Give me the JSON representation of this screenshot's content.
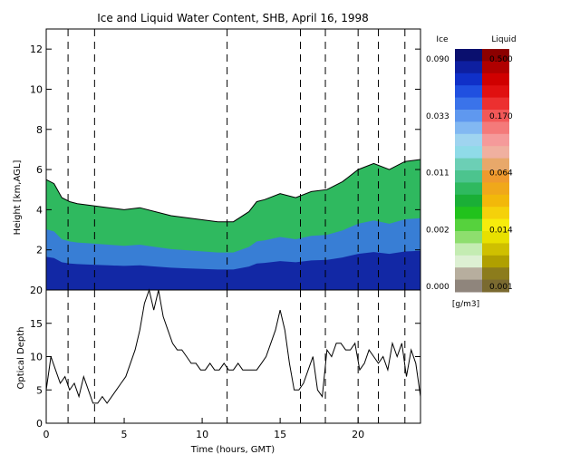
{
  "chart_data": [
    {
      "type": "heatmap",
      "title": "Ice and Liquid Water Content, SHB, April 16, 1998",
      "ylabel": "Height [km,AGL]",
      "xlim": [
        0,
        24
      ],
      "ylim": [
        0,
        13
      ],
      "x_ticks": [
        0,
        5,
        10,
        15,
        20
      ],
      "y_ticks": [
        2,
        4,
        6,
        8,
        10,
        12
      ],
      "dashed_times": [
        1.4,
        3.1,
        11.6,
        16.3,
        17.9,
        20.0,
        21.3,
        23.0
      ],
      "cloud_top_km": [
        [
          0,
          5.5
        ],
        [
          0.5,
          5.3
        ],
        [
          1,
          4.6
        ],
        [
          1.5,
          4.4
        ],
        [
          2,
          4.3
        ],
        [
          3,
          4.2
        ],
        [
          4,
          4.1
        ],
        [
          5,
          4.0
        ],
        [
          6,
          4.1
        ],
        [
          7,
          3.9
        ],
        [
          8,
          3.7
        ],
        [
          9,
          3.6
        ],
        [
          10,
          3.5
        ],
        [
          11,
          3.4
        ],
        [
          12,
          3.4
        ],
        [
          13,
          3.9
        ],
        [
          13.5,
          4.4
        ],
        [
          14,
          4.5
        ],
        [
          15,
          4.8
        ],
        [
          16,
          4.6
        ],
        [
          17,
          4.9
        ],
        [
          18,
          5.0
        ],
        [
          19,
          5.4
        ],
        [
          20,
          6.0
        ],
        [
          21,
          6.3
        ],
        [
          22,
          6.0
        ],
        [
          23,
          6.4
        ],
        [
          24,
          6.5
        ]
      ],
      "ice_colorbar": {
        "label": "Ice",
        "ticks": [
          "0.090",
          "0.033",
          "0.011",
          "0.002",
          "0.000"
        ],
        "colors": [
          "#0a0f6e",
          "#0e1fa0",
          "#1030c8",
          "#2050e0",
          "#3a73ea",
          "#5f98ef",
          "#82b8f2",
          "#9fd4f0",
          "#8fdbe8",
          "#6ccfb5",
          "#4cc48e",
          "#2fb95f",
          "#1aaf36",
          "#21c21c",
          "#56d23d",
          "#8ede6e",
          "#c4ecb2",
          "#ddf0d3",
          "#b7ae9e",
          "#8f857c"
        ]
      },
      "liquid_colorbar": {
        "label": "Liquid",
        "ticks": [
          "0.500",
          "0.170",
          "0.064",
          "0.014",
          "0.001"
        ],
        "unit": "[g/m3]",
        "colors": [
          "#8c0000",
          "#b00000",
          "#d00000",
          "#e01010",
          "#ec3030",
          "#f25858",
          "#f47a7a",
          "#f59a9a",
          "#f0b0a0",
          "#e8a86a",
          "#ef9a2e",
          "#f0a81a",
          "#f2b80a",
          "#f5d10a",
          "#f7ec0c",
          "#e8e000",
          "#cfc000",
          "#b0a000",
          "#8c7c1c",
          "#7a6a30"
        ]
      }
    },
    {
      "type": "line",
      "xlabel": "Time (hours, GMT)",
      "ylabel": "Optical Depth",
      "xlim": [
        0,
        24
      ],
      "ylim": [
        0,
        20
      ],
      "x_ticks": [
        0,
        5,
        10,
        15,
        20
      ],
      "y_ticks": [
        0,
        5,
        10,
        15,
        20
      ],
      "series": [
        {
          "x": [
            0,
            0.3,
            0.6,
            0.9,
            1.2,
            1.5,
            1.8,
            2.1,
            2.4,
            2.7,
            3.0,
            3.3,
            3.6,
            3.9,
            4.2,
            4.5,
            4.8,
            5.1,
            5.4,
            5.7,
            6.0,
            6.3,
            6.6,
            6.9,
            7.2,
            7.5,
            7.8,
            8.1,
            8.4,
            8.7,
            9.0,
            9.3,
            9.6,
            9.9,
            10.2,
            10.5,
            10.8,
            11.1,
            11.4,
            11.7,
            12.0,
            12.3,
            12.6,
            12.9,
            13.2,
            13.5,
            13.8,
            14.1,
            14.4,
            14.7,
            15.0,
            15.3,
            15.6,
            15.9,
            16.2,
            16.5,
            16.8,
            17.1,
            17.4,
            17.7,
            18.0,
            18.3,
            18.6,
            18.9,
            19.2,
            19.5,
            19.8,
            20.1,
            20.4,
            20.7,
            21.0,
            21.3,
            21.6,
            21.9,
            22.2,
            22.5,
            22.8,
            23.1,
            23.4,
            23.7,
            24.0
          ],
          "values": [
            5,
            10,
            8,
            6,
            7,
            5,
            6,
            4,
            7,
            5,
            3,
            3,
            4,
            3,
            4,
            5,
            6,
            7,
            9,
            11,
            14,
            18,
            20,
            17,
            20,
            16,
            14,
            12,
            11,
            11,
            10,
            9,
            9,
            8,
            8,
            9,
            8,
            8,
            9,
            8,
            8,
            9,
            8,
            8,
            8,
            8,
            9,
            10,
            12,
            14,
            17,
            14,
            9,
            5,
            5,
            6,
            8,
            10,
            5,
            4,
            11,
            10,
            12,
            12,
            11,
            11,
            12,
            8,
            9,
            11,
            10,
            9,
            10,
            8,
            12,
            10,
            12,
            7,
            11,
            9,
            4
          ]
        }
      ]
    }
  ]
}
